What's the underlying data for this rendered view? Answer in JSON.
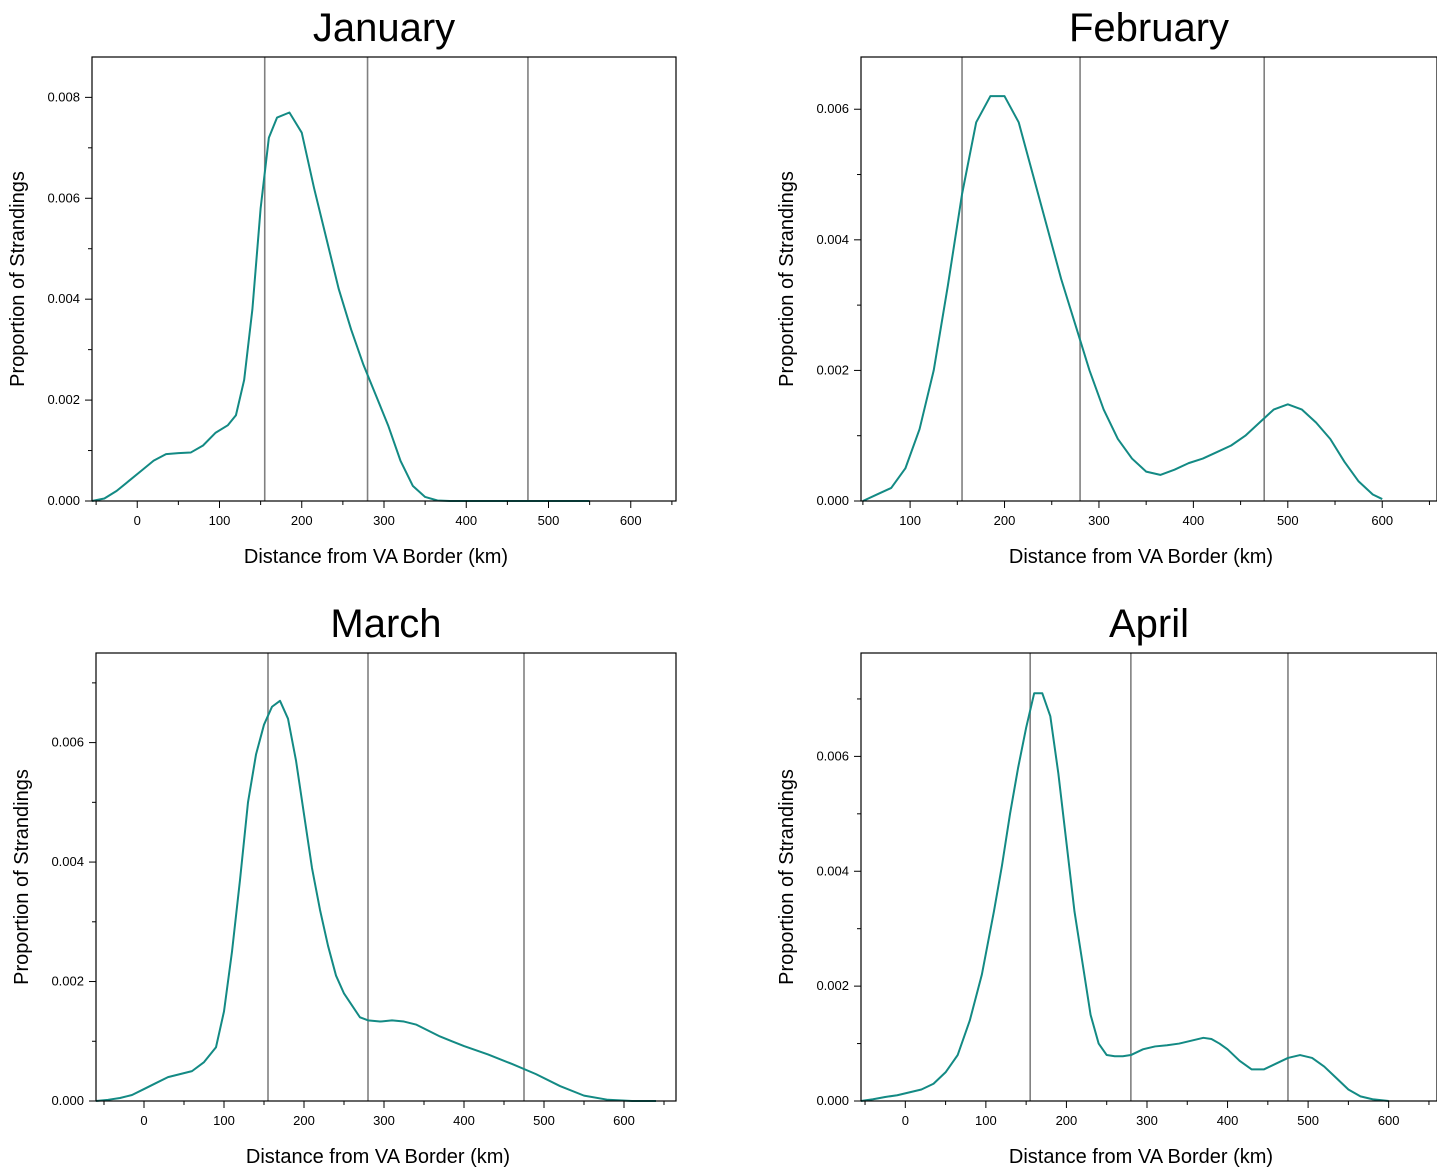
{
  "colors": {
    "curve": "#138a84",
    "refline": "#808080",
    "frame": "#000000"
  },
  "chart_data": [
    {
      "type": "line",
      "title": "January",
      "xlabel": "Distance from VA Border (km)",
      "ylabel": "Proportion of Strandings",
      "xlim": [
        -55,
        655
      ],
      "ylim": [
        0,
        0.0088
      ],
      "xticks": [
        0,
        100,
        200,
        300,
        400,
        500,
        600
      ],
      "yticks": [
        0.0,
        0.002,
        0.004,
        0.006,
        0.008
      ],
      "ytick_labels": [
        "0.000",
        "0.002",
        "0.004",
        "0.006",
        "0.008"
      ],
      "vlines": [
        155,
        280,
        475
      ],
      "grid": false,
      "series": [
        {
          "x": [
            -55,
            -40,
            -25,
            -10,
            5,
            20,
            35,
            50,
            65,
            80,
            95,
            110,
            120,
            130,
            140,
            150,
            160,
            170,
            185,
            200,
            215,
            230,
            245,
            260,
            275,
            290,
            305,
            320,
            335,
            350,
            365,
            380,
            400,
            450,
            500,
            550
          ],
          "values": [
            0.0,
            5e-05,
            0.0002,
            0.0004,
            0.0006,
            0.0008,
            0.00093,
            0.00095,
            0.00096,
            0.0011,
            0.00135,
            0.0015,
            0.0017,
            0.0024,
            0.0038,
            0.0058,
            0.0072,
            0.0076,
            0.0077,
            0.0073,
            0.0062,
            0.0052,
            0.0042,
            0.0034,
            0.0027,
            0.0021,
            0.0015,
            0.0008,
            0.0003,
            8e-05,
            1e-05,
            0.0,
            0.0,
            0.0,
            0.0,
            0.0
          ]
        }
      ]
    },
    {
      "type": "line",
      "title": "February",
      "xlabel": "Distance from VA Border (km)",
      "ylabel": "Proportion of Strandings",
      "xlim": [
        48,
        658
      ],
      "ylim": [
        0,
        0.0068
      ],
      "xticks": [
        100,
        200,
        300,
        400,
        500,
        600
      ],
      "yticks": [
        0.0,
        0.002,
        0.004,
        0.006
      ],
      "ytick_labels": [
        "0.000",
        "0.002",
        "0.004",
        "0.006"
      ],
      "vlines": [
        155,
        280,
        475
      ],
      "grid": false,
      "series": [
        {
          "x": [
            50,
            65,
            80,
            95,
            110,
            125,
            140,
            155,
            170,
            185,
            200,
            215,
            230,
            245,
            260,
            275,
            290,
            305,
            320,
            335,
            350,
            365,
            380,
            395,
            410,
            425,
            440,
            455,
            470,
            485,
            500,
            515,
            530,
            545,
            560,
            575,
            590,
            600
          ],
          "values": [
            0.0,
            0.0001,
            0.0002,
            0.0005,
            0.0011,
            0.002,
            0.0033,
            0.0047,
            0.0058,
            0.0062,
            0.0062,
            0.0058,
            0.005,
            0.0042,
            0.0034,
            0.0027,
            0.002,
            0.0014,
            0.00095,
            0.00065,
            0.00045,
            0.0004,
            0.00048,
            0.00058,
            0.00065,
            0.00075,
            0.00085,
            0.001,
            0.0012,
            0.0014,
            0.00148,
            0.0014,
            0.0012,
            0.00095,
            0.0006,
            0.0003,
            0.0001,
            3e-05
          ]
        }
      ]
    },
    {
      "type": "line",
      "title": "March",
      "xlabel": "Distance from VA Border (km)",
      "ylabel": "Proportion of Strandings",
      "xlim": [
        -60,
        665
      ],
      "ylim": [
        0,
        0.0075
      ],
      "xticks": [
        0,
        100,
        200,
        300,
        400,
        500,
        600
      ],
      "yticks": [
        0.0,
        0.002,
        0.004,
        0.006
      ],
      "ytick_labels": [
        "0.000",
        "0.002",
        "0.004",
        "0.006"
      ],
      "vlines": [
        155,
        280,
        475
      ],
      "grid": false,
      "series": [
        {
          "x": [
            -60,
            -45,
            -30,
            -15,
            0,
            15,
            30,
            45,
            60,
            75,
            90,
            100,
            110,
            120,
            130,
            140,
            150,
            160,
            170,
            180,
            190,
            200,
            210,
            220,
            230,
            240,
            250,
            260,
            270,
            280,
            295,
            310,
            325,
            340,
            355,
            370,
            385,
            400,
            430,
            460,
            490,
            520,
            550,
            580,
            610,
            640
          ],
          "values": [
            0.0,
            2e-05,
            5e-05,
            0.0001,
            0.0002,
            0.0003,
            0.0004,
            0.00045,
            0.0005,
            0.00065,
            0.0009,
            0.0015,
            0.0025,
            0.0037,
            0.005,
            0.0058,
            0.0063,
            0.0066,
            0.0067,
            0.0064,
            0.0057,
            0.0048,
            0.0039,
            0.0032,
            0.0026,
            0.0021,
            0.0018,
            0.0016,
            0.0014,
            0.00135,
            0.00133,
            0.00135,
            0.00133,
            0.00128,
            0.00118,
            0.00108,
            0.001,
            0.00092,
            0.00078,
            0.00062,
            0.00045,
            0.00025,
            9e-05,
            2e-05,
            0.0,
            0.0
          ]
        }
      ]
    },
    {
      "type": "line",
      "title": "April",
      "xlabel": "Distance from VA Border (km)",
      "ylabel": "Proportion of Strandings",
      "xlim": [
        -55,
        660
      ],
      "ylim": [
        0,
        0.0078
      ],
      "xticks": [
        0,
        100,
        200,
        300,
        400,
        500,
        600
      ],
      "yticks": [
        0.0,
        0.002,
        0.004,
        0.006
      ],
      "ytick_labels": [
        "0.000",
        "0.002",
        "0.004",
        "0.006"
      ],
      "vlines": [
        155,
        280,
        475
      ],
      "grid": false,
      "series": [
        {
          "x": [
            -55,
            -40,
            -25,
            -10,
            5,
            20,
            35,
            50,
            65,
            80,
            95,
            110,
            120,
            130,
            140,
            150,
            160,
            170,
            180,
            190,
            200,
            210,
            220,
            230,
            240,
            250,
            260,
            270,
            280,
            295,
            310,
            325,
            340,
            355,
            370,
            380,
            390,
            400,
            415,
            430,
            445,
            460,
            475,
            490,
            505,
            520,
            535,
            550,
            565,
            580,
            600
          ],
          "values": [
            0.0,
            3e-05,
            7e-05,
            0.0001,
            0.00015,
            0.0002,
            0.0003,
            0.0005,
            0.0008,
            0.0014,
            0.0022,
            0.0033,
            0.0041,
            0.005,
            0.0058,
            0.0065,
            0.0071,
            0.0071,
            0.0067,
            0.0057,
            0.0045,
            0.0033,
            0.0024,
            0.0015,
            0.001,
            0.0008,
            0.00078,
            0.00078,
            0.0008,
            0.0009,
            0.00095,
            0.00097,
            0.001,
            0.00105,
            0.0011,
            0.00108,
            0.001,
            0.0009,
            0.0007,
            0.00055,
            0.00055,
            0.00065,
            0.00075,
            0.0008,
            0.00075,
            0.0006,
            0.0004,
            0.0002,
            8e-05,
            3e-05,
            0.0
          ]
        }
      ]
    }
  ]
}
